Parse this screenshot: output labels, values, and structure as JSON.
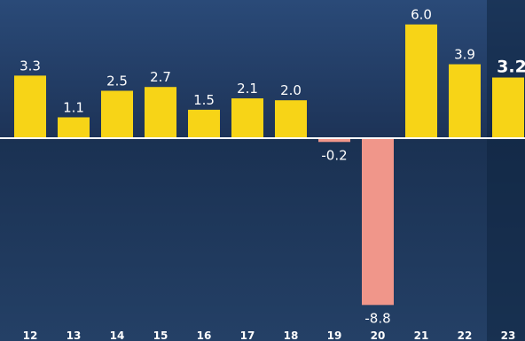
{
  "chart_data": {
    "type": "bar",
    "title": "",
    "xlabel": "",
    "ylabel": "",
    "categories": [
      "12",
      "13",
      "14",
      "15",
      "16",
      "17",
      "18",
      "19",
      "20",
      "21",
      "22",
      "23"
    ],
    "values": [
      3.3,
      1.1,
      2.5,
      2.7,
      1.5,
      2.1,
      2.0,
      -0.2,
      -8.8,
      6.0,
      3.9,
      3.2
    ],
    "value_labels": [
      "3.3",
      "1.1",
      "2.5",
      "2.7",
      "1.5",
      "2.1",
      "2.0",
      "-0.2",
      "-8.8",
      "6.0",
      "3.9",
      "3.2"
    ],
    "ylim": [
      -9.2,
      6.8
    ],
    "grid": false,
    "legend": "none",
    "highlighted_category": "23",
    "colors": {
      "background_top": "#2a4a78",
      "background_bottom": "#1d3357",
      "lower_panel_top": "#1a3152",
      "lower_panel_bottom": "#244066",
      "highlight_panel": "#0f2540",
      "positive_bar": "#f7d417",
      "negative_bar": "#f0968a",
      "zero_line": "#ffffff",
      "text": "#ffffff"
    }
  }
}
